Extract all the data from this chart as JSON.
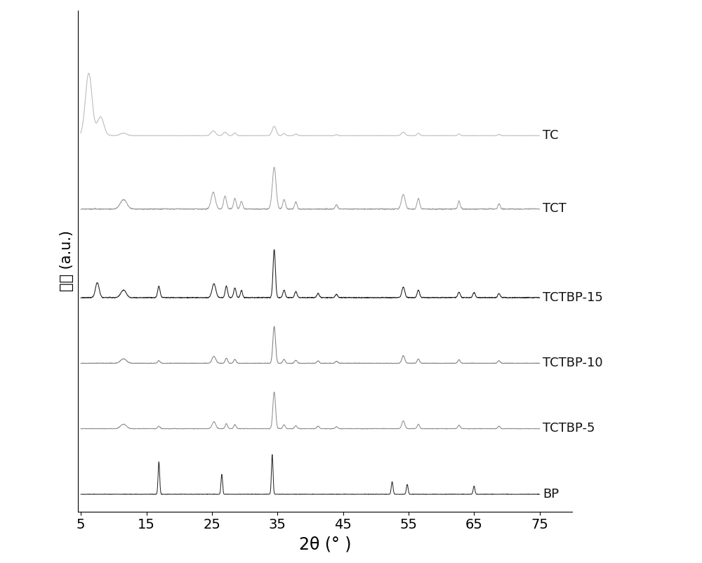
{
  "xlabel": "2θ (° )",
  "ylabel": "强度 (a.u.)",
  "xlim": [
    5,
    75
  ],
  "ylim": [
    -0.3,
    8.5
  ],
  "xticks": [
    5,
    15,
    25,
    35,
    45,
    55,
    65,
    75
  ],
  "series_order": [
    "BP",
    "TCTBP-5",
    "TCTBP-10",
    "TCTBP-15",
    "TCT",
    "TC"
  ],
  "series_colors": [
    "#2a2a2a",
    "#909090",
    "#808080",
    "#1a1a1a",
    "#a0a0a0",
    "#b8b8b8"
  ],
  "series_offsets": [
    0.0,
    1.15,
    2.3,
    3.45,
    5.0,
    6.3
  ],
  "series_scales": [
    0.7,
    0.65,
    0.65,
    0.85,
    0.75,
    1.1
  ],
  "background_color": "#ffffff",
  "label_fontsize": 13,
  "tick_fontsize": 14,
  "xlabel_fontsize": 17,
  "ylabel_fontsize": 15
}
